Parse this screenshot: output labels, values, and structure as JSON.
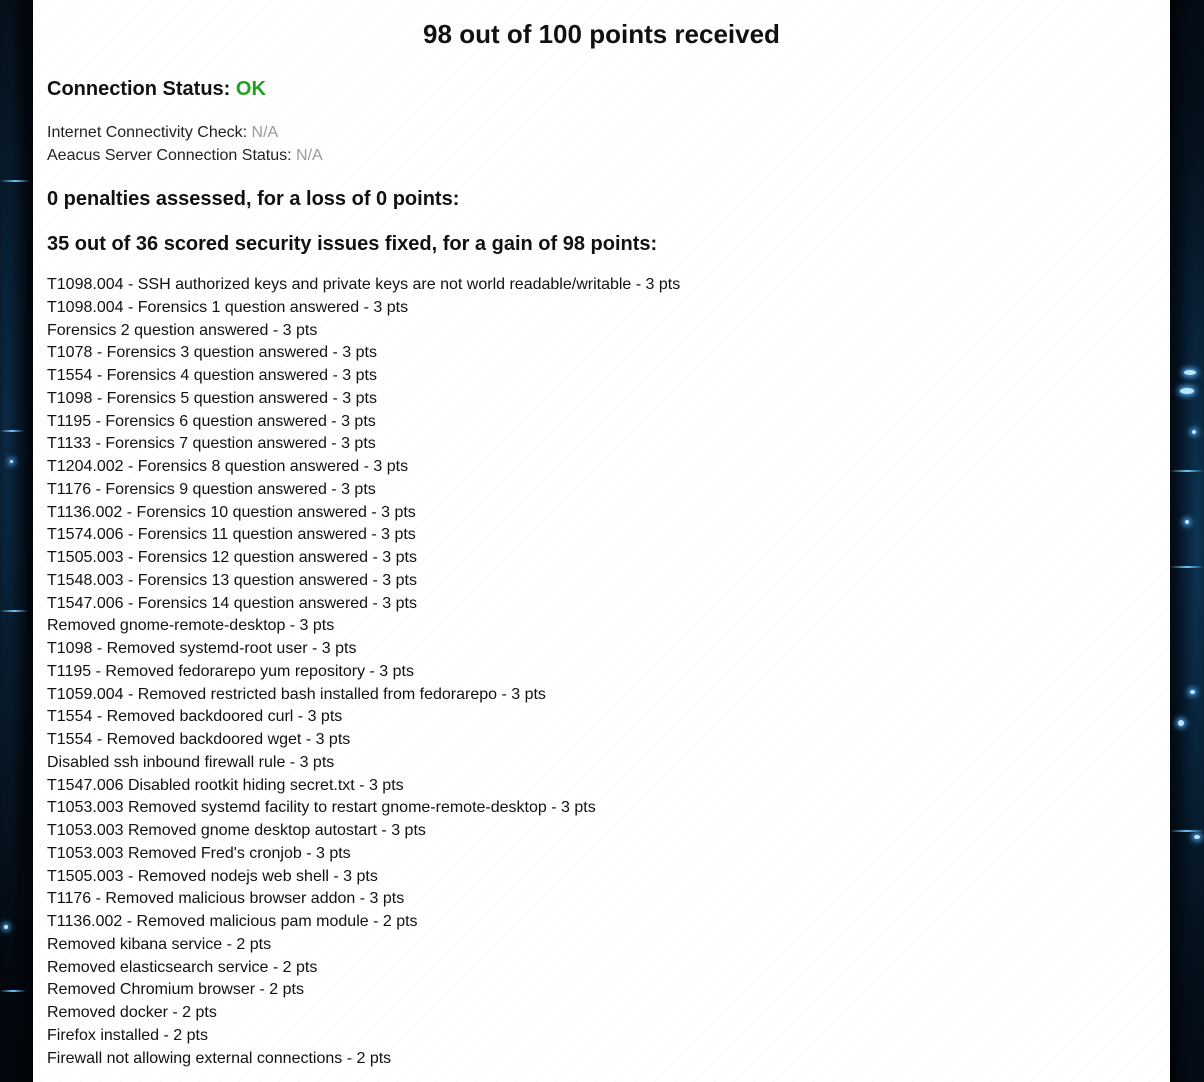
{
  "report": {
    "title": "98 out of 100 points received",
    "connection": {
      "label": "Connection Status:",
      "value": "OK",
      "value_color": "#20a020"
    },
    "checks": [
      {
        "label": "Internet Connectivity Check:",
        "value": "N/A"
      },
      {
        "label": "Aeacus Server Connection Status:",
        "value": "N/A"
      }
    ],
    "penalties_heading": "0 penalties assessed, for a loss of 0 points:",
    "fixed_heading": "35 out of 36 scored security issues fixed, for a gain of 98 points:",
    "issues": [
      "T1098.004 - SSH authorized keys and private keys are not world readable/writable - 3 pts",
      "T1098.004 - Forensics 1 question answered - 3 pts",
      "Forensics 2 question answered - 3 pts",
      "T1078 - Forensics 3 question answered - 3 pts",
      "T1554 - Forensics 4 question answered - 3 pts",
      "T1098 - Forensics 5 question answered - 3 pts",
      "T1195 - Forensics 6 question answered - 3 pts",
      "T1133 - Forensics 7 question answered - 3 pts",
      "T1204.002 - Forensics 8 question answered - 3 pts",
      "T1176 - Forensics 9 question answered - 3 pts",
      "T1136.002 - Forensics 10 question answered - 3 pts",
      "T1574.006 - Forensics 11 question answered - 3 pts",
      "T1505.003 - Forensics 12 question answered - 3 pts",
      "T1548.003 - Forensics 13 question answered - 3 pts",
      "T1547.006 - Forensics 14 question answered - 3 pts",
      "Removed gnome-remote-desktop - 3 pts",
      "T1098 - Removed systemd-root user - 3 pts",
      "T1195 - Removed fedorarepo yum repository - 3 pts",
      "T1059.004 - Removed restricted bash installed from fedorarepo - 3 pts",
      "T1554 - Removed backdoored curl - 3 pts",
      "T1554 - Removed backdoored wget - 3 pts",
      "Disabled ssh inbound firewall rule - 3 pts",
      "T1547.006 Disabled rootkit hiding secret.txt - 3 pts",
      "T1053.003 Removed systemd facility to restart gnome-remote-desktop - 3 pts",
      "T1053.003 Removed gnome desktop autostart - 3 pts",
      "T1053.003 Removed Fred's cronjob - 3 pts",
      "T1505.003 - Removed nodejs web shell - 3 pts",
      "T1176 - Removed malicious browser addon - 3 pts",
      "T1136.002 - Removed malicious pam module - 2 pts",
      "Removed kibana service - 2 pts",
      "Removed elasticsearch service - 2 pts",
      "Removed Chromium browser - 2 pts",
      "Removed docker - 2 pts",
      "Firefox installed - 2 pts",
      "Firewall not allowing external connections - 2 pts"
    ]
  }
}
